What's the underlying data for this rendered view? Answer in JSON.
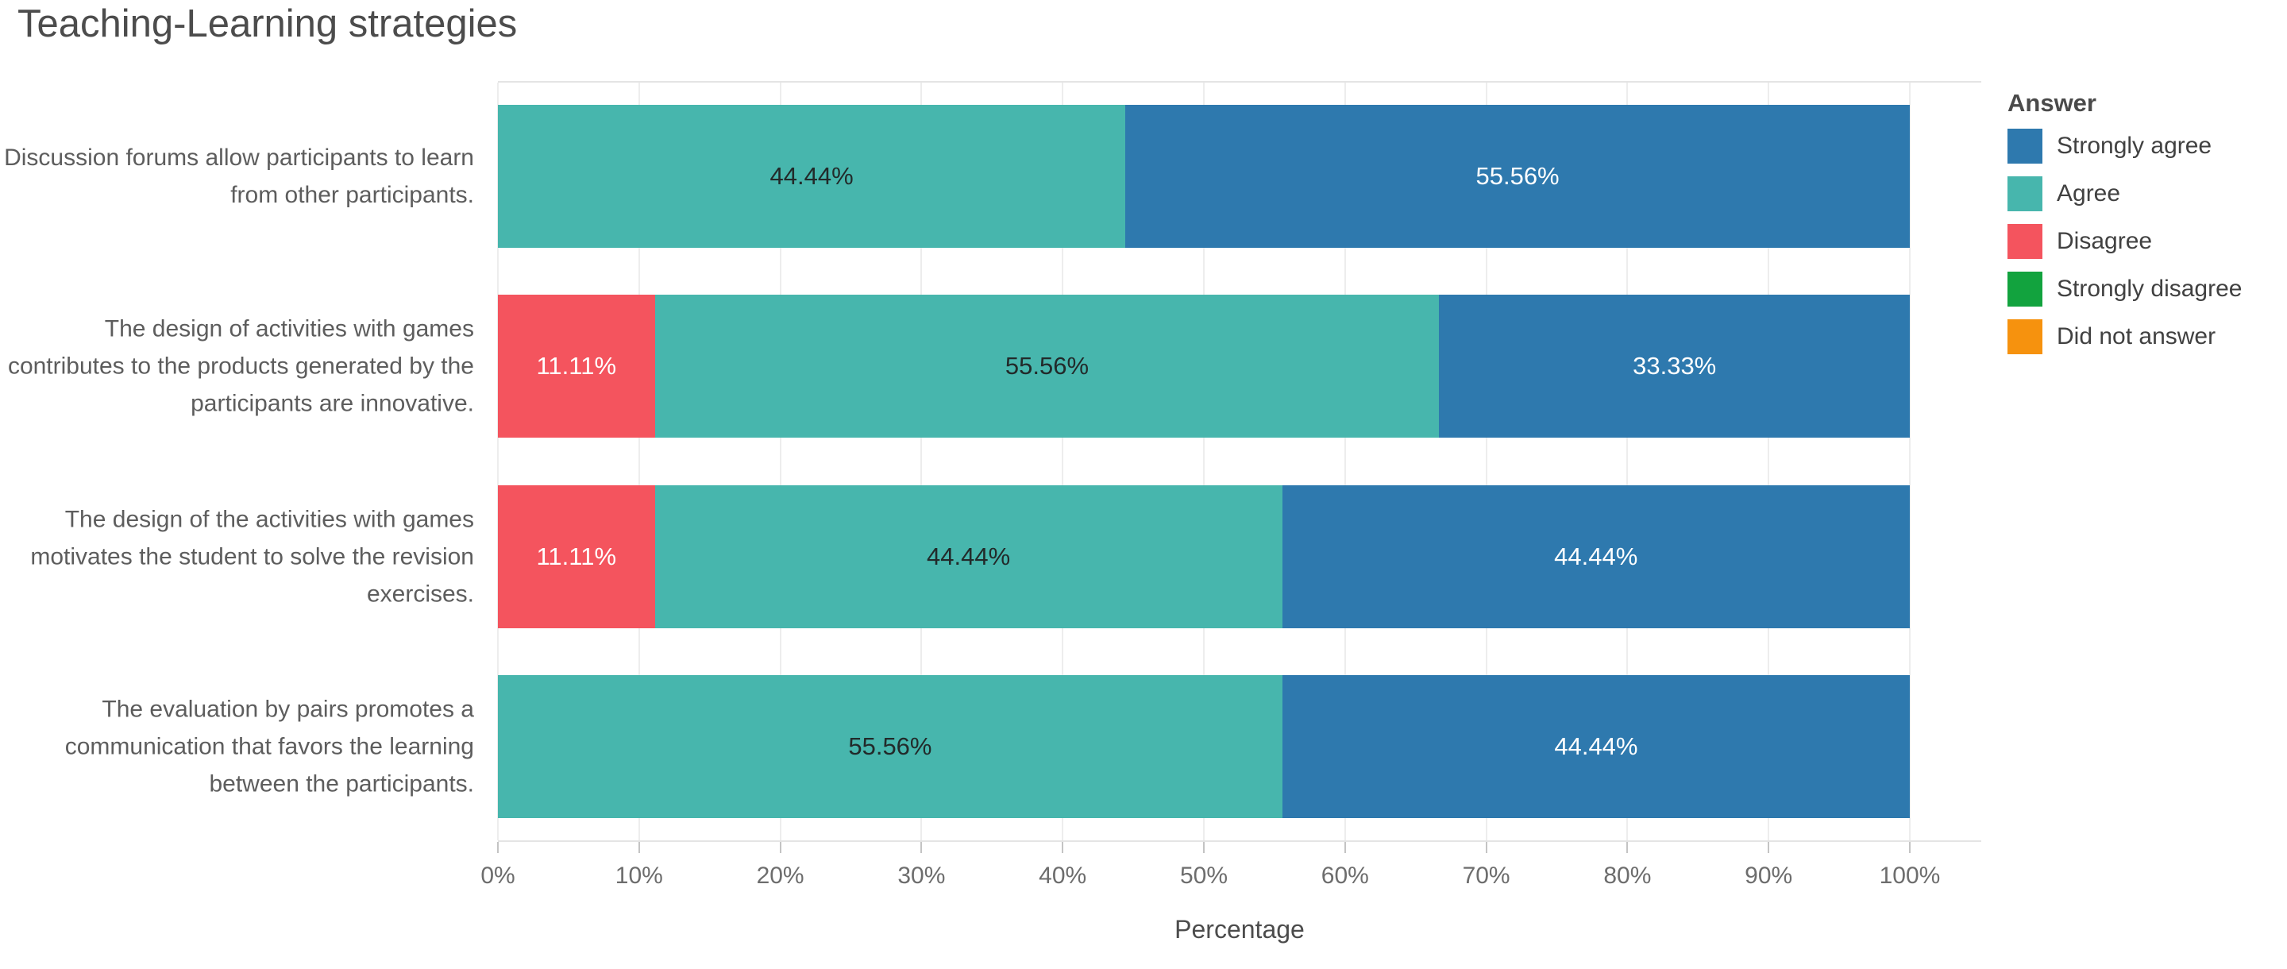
{
  "chart_data": {
    "type": "bar",
    "orientation": "horizontal",
    "stacked": true,
    "title": "Teaching-Learning strategies",
    "xlabel": "Percentage",
    "xlim": [
      0,
      100
    ],
    "grid": true,
    "legend_title": "Answer",
    "legend_position": "right",
    "x_ticks": [
      "0%",
      "10%",
      "20%",
      "30%",
      "40%",
      "50%",
      "60%",
      "70%",
      "80%",
      "90%",
      "100%"
    ],
    "answers": [
      {
        "name": "Strongly agree",
        "color": "#2e79ae",
        "label_color": "#ffffff"
      },
      {
        "name": "Agree",
        "color": "#47b6ad",
        "label_color": "#222a2a"
      },
      {
        "name": "Disagree",
        "color": "#f4545e",
        "label_color": "#ffffff"
      },
      {
        "name": "Strongly disagree",
        "color": "#12a33e",
        "label_color": "#ffffff"
      },
      {
        "name": "Did not answer",
        "color": "#f6920e",
        "label_color": "#ffffff"
      }
    ],
    "rows": [
      {
        "category": "Discussion forums allow participants to learn from other participants.",
        "segments": [
          {
            "answer": "Agree",
            "value": 44.44,
            "label": "44.44%"
          },
          {
            "answer": "Strongly agree",
            "value": 55.56,
            "label": "55.56%"
          }
        ]
      },
      {
        "category": "The design of activities with games contributes to the products generated by the participants are innovative.",
        "segments": [
          {
            "answer": "Disagree",
            "value": 11.11,
            "label": "11.11%"
          },
          {
            "answer": "Agree",
            "value": 55.56,
            "label": "55.56%"
          },
          {
            "answer": "Strongly agree",
            "value": 33.33,
            "label": "33.33%"
          }
        ]
      },
      {
        "category": "The design of the activities with games motivates the student to solve the revision exercises.",
        "segments": [
          {
            "answer": "Disagree",
            "value": 11.11,
            "label": "11.11%"
          },
          {
            "answer": "Agree",
            "value": 44.44,
            "label": "44.44%"
          },
          {
            "answer": "Strongly agree",
            "value": 44.44,
            "label": "44.44%"
          }
        ]
      },
      {
        "category": "The evaluation by pairs promotes a communication that favors the learning between the participants.",
        "segments": [
          {
            "answer": "Agree",
            "value": 55.56,
            "label": "55.56%"
          },
          {
            "answer": "Strongly agree",
            "value": 44.44,
            "label": "44.44%"
          }
        ]
      }
    ]
  }
}
